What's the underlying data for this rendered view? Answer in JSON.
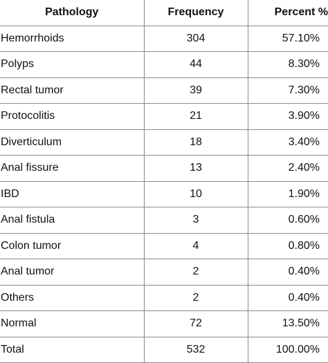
{
  "headers": {
    "pathology": "Pathology",
    "frequency": "Frequency",
    "percent": "Percent %"
  },
  "rows": [
    {
      "pathology": "Hemorrhoids",
      "frequency": "304",
      "percent": "57.10%"
    },
    {
      "pathology": "Polyps",
      "frequency": "44",
      "percent": "8.30%"
    },
    {
      "pathology": "Rectal tumor",
      "frequency": "39",
      "percent": "7.30%"
    },
    {
      "pathology": "Protocolitis",
      "frequency": "21",
      "percent": "3.90%"
    },
    {
      "pathology": "Diverticulum",
      "frequency": "18",
      "percent": "3.40%"
    },
    {
      "pathology": "Anal fissure",
      "frequency": "13",
      "percent": "2.40%"
    },
    {
      "pathology": "IBD",
      "frequency": "10",
      "percent": "1.90%"
    },
    {
      "pathology": "Anal fistula",
      "frequency": "3",
      "percent": "0.60%"
    },
    {
      "pathology": "Colon tumor",
      "frequency": "4",
      "percent": "0.80%"
    },
    {
      "pathology": "Anal tumor",
      "frequency": "2",
      "percent": "0.40%"
    },
    {
      "pathology": "Others",
      "frequency": "2",
      "percent": "0.40%"
    },
    {
      "pathology": "Normal",
      "frequency": "72",
      "percent": "13.50%"
    },
    {
      "pathology": "Total",
      "frequency": "532",
      "percent": "100.00%"
    }
  ]
}
